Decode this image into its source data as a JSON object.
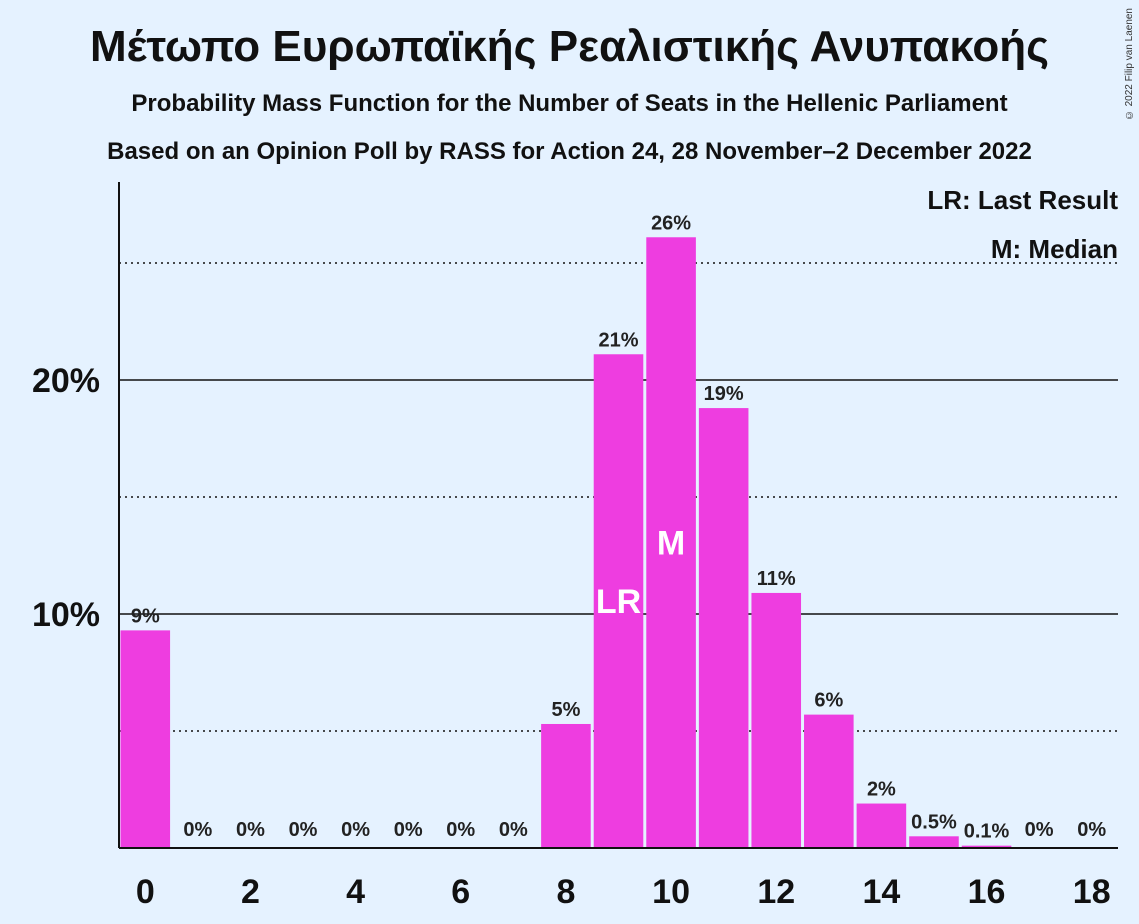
{
  "title": "Μέτωπο Ευρωπαϊκής Ρεαλιστικής Ανυπακοής",
  "subtitle_1": "Probability Mass Function for the Number of Seats in the Hellenic Parliament",
  "subtitle_2": "Based on an Opinion Poll by RASS for Action 24, 28 November–2 December 2022",
  "copyright": "© 2022 Filip van Laenen",
  "legend": {
    "last_result": "LR: Last Result",
    "median": "M: Median"
  },
  "colors": {
    "bar": "#ee3de0",
    "background": "#e5f2ff",
    "axis": "#111111"
  },
  "chart_data": {
    "type": "bar",
    "x": [
      0,
      1,
      2,
      3,
      4,
      5,
      6,
      7,
      8,
      9,
      10,
      11,
      12,
      13,
      14,
      15,
      16,
      17,
      18
    ],
    "values": [
      9.3,
      0,
      0,
      0,
      0,
      0,
      0,
      0,
      5.3,
      21.1,
      26.1,
      18.8,
      10.9,
      5.7,
      1.9,
      0.5,
      0.1,
      0,
      0
    ],
    "data_labels": [
      "9%",
      "0%",
      "0%",
      "0%",
      "0%",
      "0%",
      "0%",
      "0%",
      "5%",
      "21%",
      "26%",
      "19%",
      "11%",
      "6%",
      "2%",
      "0.5%",
      "0.1%",
      "0%",
      "0%"
    ],
    "x_ticks": [
      0,
      2,
      4,
      6,
      8,
      10,
      12,
      14,
      16,
      18
    ],
    "y_ticks": [
      {
        "value": 10,
        "label": "10%"
      },
      {
        "value": 20,
        "label": "20%"
      }
    ],
    "y_dotted_lines": [
      5,
      15,
      25
    ],
    "ylim": [
      0,
      28.5
    ],
    "xlim": [
      -0.5,
      18.5
    ],
    "markers": [
      {
        "x": 9,
        "label": "LR"
      },
      {
        "x": 10,
        "label": "M"
      }
    ],
    "xlabel": "",
    "ylabel": "",
    "grid": true,
    "legend_position": "top-right"
  }
}
